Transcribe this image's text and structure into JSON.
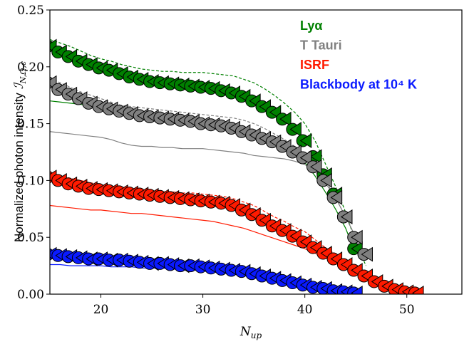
{
  "chart_data": {
    "type": "line",
    "xlabel": "N",
    "xlabel_subscript": "up",
    "ylabel": "Normalized photon intensity",
    "ylabel_symbol": "ℐ",
    "ylabel_subscript": "N,Ω,ϵ",
    "xlim": [
      15,
      55.4
    ],
    "ylim": [
      0,
      0.25
    ],
    "xticks": [
      20,
      30,
      40,
      50
    ],
    "yticks": [
      {
        "value": 0,
        "label": "0.00"
      },
      {
        "value": 0.05,
        "label": "0.05"
      },
      {
        "value": 0.1,
        "label": "0.10"
      },
      {
        "value": 0.15,
        "label": "0.15"
      },
      {
        "value": 0.2,
        "label": "0.20"
      },
      {
        "value": 0.25,
        "label": "0.25"
      }
    ],
    "legend": "upper right",
    "x": [
      15,
      16,
      17,
      18,
      19,
      20,
      21,
      22,
      23,
      24,
      25,
      26,
      27,
      28,
      29,
      30,
      31,
      32,
      33,
      34,
      35,
      36,
      37,
      38,
      39,
      40,
      41,
      42,
      43,
      44,
      45,
      46,
      47,
      48,
      49,
      50,
      51
    ],
    "series": [
      {
        "name": "Lyα",
        "color": "#008000",
        "values": [
          0.218,
          0.213,
          0.209,
          0.205,
          0.202,
          0.199,
          0.197,
          0.194,
          0.191,
          0.189,
          0.187,
          0.186,
          0.185,
          0.184,
          0.183,
          0.182,
          0.181,
          0.179,
          0.177,
          0.174,
          0.17,
          0.165,
          0.16,
          0.154,
          0.145,
          0.135,
          0.121,
          0.105,
          0.088,
          0.068,
          0.04,
          null,
          null,
          null,
          null,
          null,
          null
        ],
        "dashed_values": [
          0.224,
          0.221,
          0.218,
          0.214,
          0.21,
          0.207,
          0.205,
          0.202,
          0.2,
          0.198,
          0.197,
          0.196,
          0.196,
          0.195,
          0.195,
          0.195,
          0.194,
          0.193,
          0.192,
          0.189,
          0.186,
          0.181,
          0.175,
          0.168,
          0.16,
          0.15,
          0.135,
          0.115,
          0.095,
          0.072,
          0.045,
          0.025,
          null,
          null,
          null,
          null,
          null
        ],
        "solid_values": [
          0.17,
          0.169,
          0.168,
          0.167,
          0.165,
          0.164,
          0.162,
          0.159,
          0.156,
          0.154,
          0.153,
          0.152,
          0.151,
          0.151,
          0.15,
          0.15,
          0.149,
          0.148,
          0.147,
          0.145,
          0.143,
          0.14,
          0.136,
          0.131,
          0.125,
          0.116,
          0.104,
          0.09,
          0.075,
          0.058,
          0.035,
          null,
          null,
          null,
          null,
          null,
          null
        ]
      },
      {
        "name": "T Tauri",
        "color": "#808080",
        "values": [
          0.186,
          0.18,
          0.176,
          0.172,
          0.168,
          0.165,
          0.163,
          0.161,
          0.159,
          0.157,
          0.156,
          0.155,
          0.154,
          0.153,
          0.152,
          0.15,
          0.149,
          0.148,
          0.146,
          0.143,
          0.14,
          0.137,
          0.134,
          0.13,
          0.125,
          0.12,
          0.112,
          0.1,
          0.085,
          0.068,
          0.05,
          0.035,
          null,
          null,
          null,
          null,
          null
        ],
        "dashed_values": [
          0.19,
          0.186,
          0.182,
          0.178,
          0.175,
          0.172,
          0.169,
          0.166,
          0.165,
          0.164,
          0.163,
          0.162,
          0.161,
          0.16,
          0.159,
          0.158,
          0.157,
          0.156,
          0.155,
          0.153,
          0.15,
          0.146,
          0.141,
          0.136,
          0.13,
          0.123,
          0.113,
          0.1,
          0.085,
          0.068,
          0.05,
          0.03,
          null,
          null,
          null,
          null,
          null
        ],
        "solid_values": [
          0.143,
          0.142,
          0.141,
          0.14,
          0.139,
          0.138,
          0.136,
          0.133,
          0.131,
          0.13,
          0.13,
          0.129,
          0.129,
          0.128,
          0.128,
          0.128,
          0.127,
          0.126,
          0.125,
          0.124,
          0.122,
          0.121,
          0.12,
          0.119,
          0.117,
          0.114,
          0.108,
          0.098,
          0.085,
          0.068,
          0.05,
          0.03,
          null,
          null,
          null,
          null,
          null
        ]
      },
      {
        "name": "ISRF",
        "color": "#ff1a00",
        "values": [
          0.103,
          0.1,
          0.097,
          0.095,
          0.093,
          0.092,
          0.091,
          0.09,
          0.089,
          0.088,
          0.087,
          0.086,
          0.085,
          0.084,
          0.083,
          0.082,
          0.081,
          0.08,
          0.078,
          0.074,
          0.07,
          0.065,
          0.06,
          0.056,
          0.051,
          0.046,
          0.041,
          0.036,
          0.031,
          0.026,
          0.021,
          0.016,
          0.011,
          0.007,
          0.004,
          0.002,
          0.001
        ],
        "dashed_values": [
          0.107,
          0.104,
          0.102,
          0.1,
          0.098,
          0.096,
          0.095,
          0.094,
          0.093,
          0.092,
          0.091,
          0.09,
          0.09,
          0.089,
          0.089,
          0.088,
          0.087,
          0.086,
          0.084,
          0.081,
          0.078,
          0.073,
          0.068,
          0.064,
          0.059,
          0.055,
          0.048,
          0.041,
          0.035,
          0.029,
          0.023,
          0.017,
          0.012,
          0.008,
          0.005,
          0.003,
          0.001
        ],
        "solid_values": [
          0.078,
          0.077,
          0.076,
          0.075,
          0.074,
          0.074,
          0.073,
          0.072,
          0.071,
          0.071,
          0.07,
          0.069,
          0.068,
          0.067,
          0.066,
          0.065,
          0.064,
          0.062,
          0.06,
          0.058,
          0.055,
          0.052,
          0.049,
          0.046,
          0.043,
          0.04,
          0.036,
          0.032,
          0.027,
          0.023,
          0.018,
          0.014,
          0.01,
          0.007,
          0.004,
          0.002,
          0.001
        ]
      },
      {
        "name": "Blackbody at 10⁴ K",
        "color": "#0a1aff",
        "values": [
          0.035,
          0.034,
          0.033,
          0.032,
          0.031,
          0.031,
          0.03,
          0.03,
          0.029,
          0.028,
          0.027,
          0.027,
          0.026,
          0.025,
          0.025,
          0.024,
          0.023,
          0.022,
          0.021,
          0.02,
          0.018,
          0.016,
          0.014,
          0.012,
          0.01,
          0.008,
          0.006,
          0.005,
          0.003,
          0.002,
          0.001,
          null,
          null,
          null,
          null,
          null,
          null
        ],
        "dashed_values": [
          0.036,
          0.035,
          0.034,
          0.033,
          0.032,
          0.031,
          0.031,
          0.03,
          0.029,
          0.029,
          0.028,
          0.027,
          0.027,
          0.026,
          0.025,
          0.024,
          0.024,
          0.023,
          0.022,
          0.02,
          0.019,
          0.017,
          0.015,
          0.013,
          0.011,
          0.009,
          0.007,
          0.005,
          0.003,
          0.002,
          0.001,
          null,
          null,
          null,
          null,
          null,
          null
        ],
        "solid_values": [
          0.026,
          0.026,
          0.025,
          0.025,
          0.025,
          0.025,
          0.024,
          0.024,
          0.024,
          0.023,
          0.023,
          0.023,
          0.022,
          0.022,
          0.022,
          0.022,
          0.021,
          0.02,
          0.019,
          0.018,
          0.016,
          0.015,
          0.013,
          0.011,
          0.009,
          0.007,
          0.005,
          0.004,
          0.003,
          0.002,
          0.001,
          null,
          null,
          null,
          null,
          null,
          null
        ]
      }
    ]
  }
}
